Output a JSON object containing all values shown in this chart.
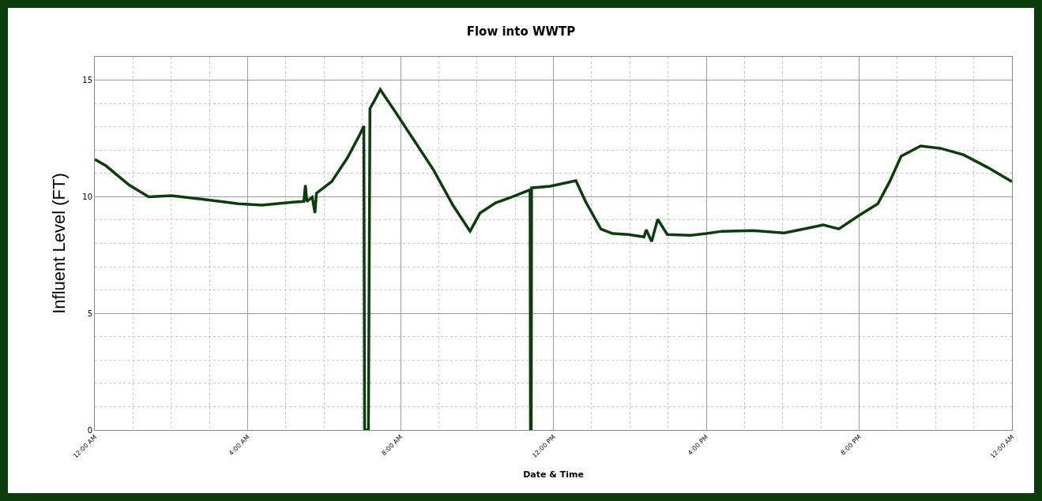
{
  "chart_data": {
    "type": "line",
    "title": "Flow into WWTP",
    "xlabel": "Date & Time",
    "ylabel": "Influent Level (FT)",
    "x": [
      0,
      0.29,
      0.9,
      1.41,
      2.0,
      2.94,
      3.76,
      4.37,
      5.18,
      5.47,
      5.51,
      5.55,
      5.69,
      5.76,
      5.8,
      6.2,
      6.61,
      6.92,
      7.04,
      7.06,
      7.16,
      7.2,
      7.35,
      7.47,
      7.59,
      7.84,
      8.24,
      8.86,
      9.37,
      9.82,
      10.08,
      10.49,
      10.9,
      11.39,
      11.4,
      11.42,
      11.43,
      11.92,
      12.59,
      12.84,
      13.24,
      13.55,
      13.96,
      14.37,
      14.43,
      14.57,
      14.73,
      14.98,
      15.59,
      16.0,
      16.41,
      17.22,
      18.04,
      18.65,
      19.06,
      19.47,
      20.0,
      20.49,
      20.8,
      21.1,
      21.61,
      22.12,
      22.73,
      23.35,
      24
    ],
    "series": [
      {
        "color": "#0b3d0b",
        "values": [
          11.6,
          11.33,
          10.5,
          10.0,
          10.05,
          9.87,
          9.7,
          9.64,
          9.77,
          9.8,
          10.5,
          9.8,
          9.98,
          9.3,
          10.15,
          10.65,
          11.67,
          12.62,
          13.03,
          0,
          0,
          13.78,
          14.22,
          14.6,
          14.3,
          13.7,
          12.7,
          11.16,
          9.64,
          8.52,
          9.3,
          9.74,
          9.98,
          10.3,
          0,
          0,
          10.38,
          10.45,
          10.69,
          9.8,
          8.62,
          8.42,
          8.38,
          8.28,
          8.58,
          8.08,
          9.03,
          8.38,
          8.35,
          8.42,
          8.52,
          8.55,
          8.45,
          8.65,
          8.79,
          8.62,
          9.2,
          9.7,
          10.65,
          11.74,
          12.18,
          12.08,
          11.8,
          11.27,
          10.65
        ]
      }
    ],
    "xlim": [
      0,
      24
    ],
    "xticks": [
      {
        "value": 0,
        "label": "12:00 AM"
      },
      {
        "value": 4,
        "label": "4:00 AM"
      },
      {
        "value": 8,
        "label": "8:00 AM"
      },
      {
        "value": 12,
        "label": "12:00 PM"
      },
      {
        "value": 16,
        "label": "4:00 PM"
      },
      {
        "value": 20,
        "label": "8:00 PM"
      },
      {
        "value": 24,
        "label": "12:00 AM"
      }
    ],
    "ylim": [
      0,
      16
    ],
    "yticks": [
      0,
      5,
      10,
      15
    ],
    "grid": true,
    "marker": "none",
    "line_style": "solid",
    "legend": false
  }
}
